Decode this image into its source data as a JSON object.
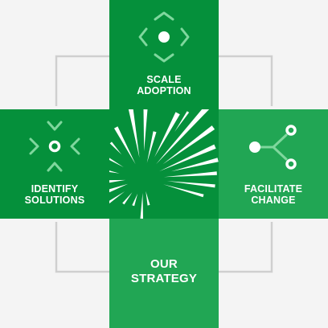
{
  "diagram": {
    "colors": {
      "background": "#f4f4f4",
      "connector": "#cfcfcf",
      "top": "#05903b",
      "left": "#05903b",
      "right": "#21a654",
      "bottom": "#21a654",
      "center": "#05903b",
      "icon_stroke": "#7fd79d",
      "icon_fill": "#ffffff"
    },
    "panels": {
      "top": {
        "icon": "move-arrows-icon",
        "lines": [
          "SCALE",
          "ADOPTION"
        ]
      },
      "left": {
        "icon": "converge-arrows-icon",
        "lines": [
          "IDENTIFY",
          "SOLUTIONS"
        ]
      },
      "right": {
        "icon": "branch-nodes-icon",
        "lines": [
          "FACILITATE",
          "CHANGE"
        ]
      },
      "bottom": {
        "lines": [
          "OUR",
          "STRATEGY"
        ]
      },
      "center": {
        "icon": "burst-icon"
      }
    }
  }
}
